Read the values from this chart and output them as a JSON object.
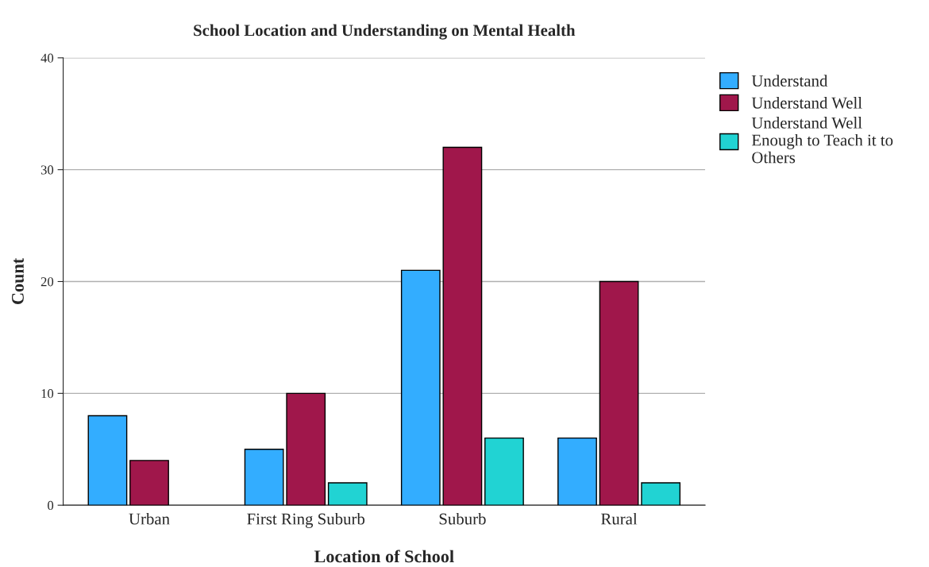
{
  "chart_data": {
    "type": "bar",
    "title": "School Location and Understanding on Mental Health",
    "xlabel": "Location of School",
    "ylabel": "Count",
    "categories": [
      "Urban",
      "First Ring Suburb",
      "Suburb",
      "Rural"
    ],
    "series": [
      {
        "name": "Understand",
        "color": "#33adff",
        "values": [
          8,
          5,
          21,
          6
        ]
      },
      {
        "name": "Understand Well",
        "color": "#a0174b",
        "values": [
          4,
          10,
          32,
          20
        ]
      },
      {
        "name": "Understand Well Enough to Teach it to Others",
        "color": "#21d3d3",
        "values": [
          null,
          2,
          6,
          2
        ]
      }
    ],
    "ylim": [
      0,
      40
    ],
    "yticks": [
      0,
      10,
      20,
      30,
      40
    ],
    "grid": "y",
    "legend": "top right"
  }
}
